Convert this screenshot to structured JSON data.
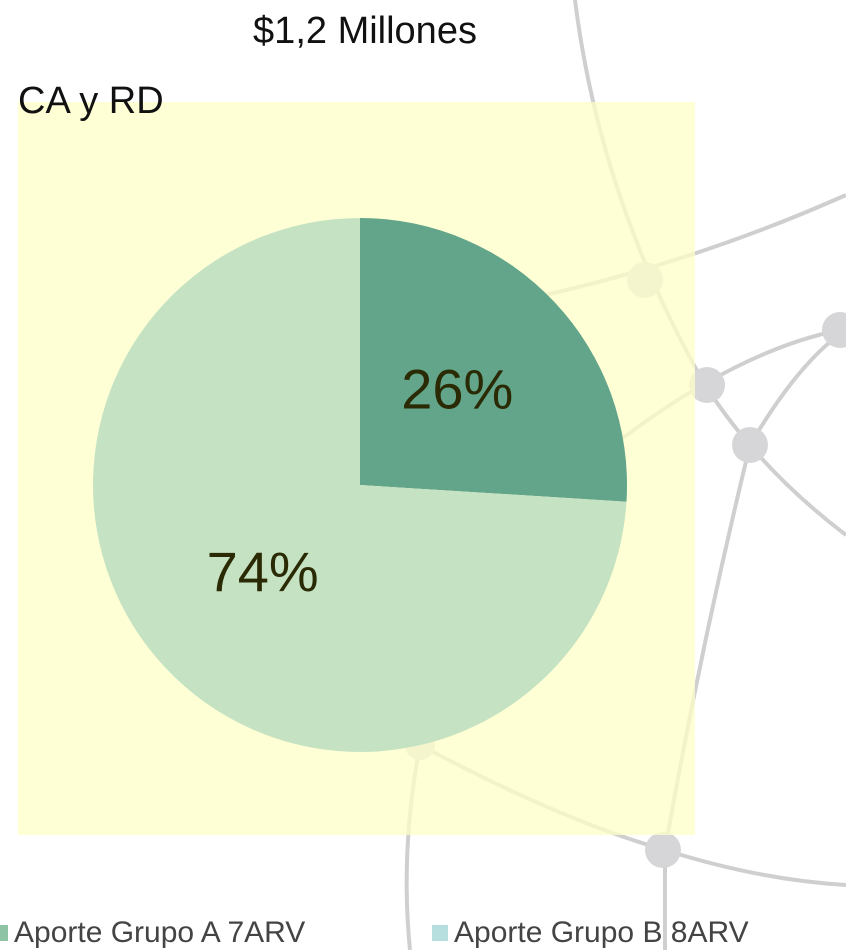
{
  "chart_data": {
    "type": "pie",
    "title": "$1,2 Millones",
    "subtitle": "CA y RD",
    "categories": [
      "Aporte Grupo A 7ARV",
      "Aporte Grupo B 8ARV"
    ],
    "values": [
      26,
      74
    ],
    "value_labels": [
      "26%",
      "74%"
    ],
    "colors": [
      "#62a58a",
      "#c5e3c2"
    ],
    "legend_colors": [
      "#8fc3a6",
      "#b8dfe0"
    ]
  }
}
